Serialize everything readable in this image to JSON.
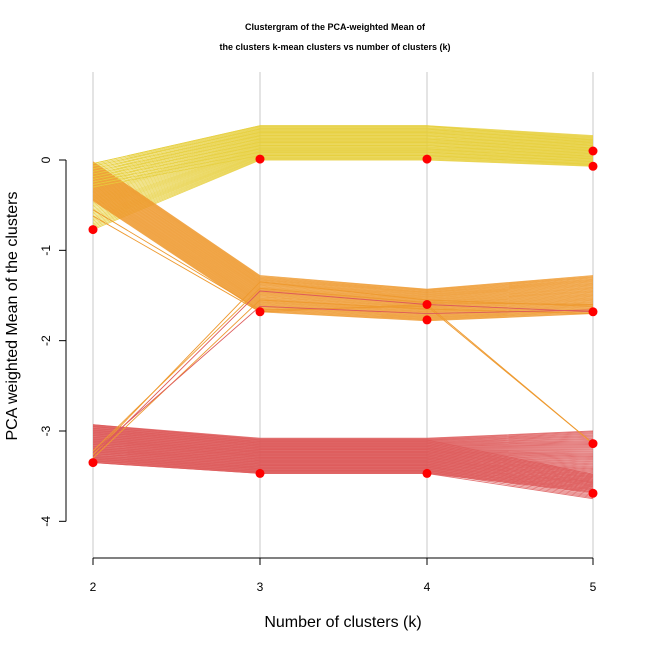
{
  "chart_data": {
    "type": "line",
    "title_line1": "Clustergram of the PCA-weighted Mean of",
    "title_line2": "the clusters k-mean clusters vs number of clusters (k)",
    "xlabel": "Number of clusters (k)",
    "ylabel": "PCA weighted Mean of the clusters",
    "x_ticks": [
      2,
      3,
      4,
      5
    ],
    "y_ticks": [
      0,
      -1,
      -2,
      -3,
      -4
    ],
    "xlim": [
      2,
      5
    ],
    "ylim": [
      -4.4,
      1.0
    ],
    "grid": "vertical",
    "colors": {
      "yellow": "#e6cf3c",
      "orange": "#ee9a30",
      "red": "#dd5a5a",
      "point": "#ff0000",
      "grid": "#c8c8c8"
    },
    "cluster_means": [
      {
        "k": 2,
        "values": [
          -0.77,
          -3.35
        ]
      },
      {
        "k": 3,
        "values": [
          0.01,
          -1.68,
          -3.47
        ]
      },
      {
        "k": 4,
        "values": [
          0.01,
          -1.6,
          -1.77,
          -3.47
        ]
      },
      {
        "k": 5,
        "values": [
          0.1,
          -0.07,
          -1.68,
          -3.14,
          -3.69
        ]
      }
    ],
    "bundles": [
      {
        "name": "",
        "color_key": "yellow",
        "count": 48,
        "path_top": [
          -0.04,
          0.38,
          0.38,
          0.27
        ],
        "path_bottom": [
          -0.77,
          0.0,
          0.0,
          -0.07
        ]
      },
      {
        "name": "",
        "color_key": "orange",
        "count": 48,
        "path_top": [
          -0.02,
          -1.28,
          -1.43,
          -1.28
        ],
        "path_bottom": [
          -0.45,
          -1.68,
          -1.78,
          -1.7
        ]
      },
      {
        "name": "",
        "color_key": "red",
        "count": 60,
        "path_top": [
          -2.93,
          -3.08,
          -3.08,
          -3.0
        ],
        "path_bottom": [
          -3.35,
          -3.47,
          -3.47,
          -3.68
        ]
      },
      {
        "name": "",
        "color_key": "red",
        "count": 22,
        "path_top": [
          -2.93,
          -3.1,
          -3.1,
          -3.48
        ],
        "path_bottom": [
          -3.35,
          -3.47,
          -3.47,
          -3.75
        ]
      },
      {
        "name": "",
        "color_key": "yellow",
        "count": 10,
        "path_top": [
          -0.04,
          0.38,
          0.38,
          0.22
        ],
        "path_bottom": [
          -0.3,
          0.05,
          0.05,
          -0.05
        ]
      }
    ],
    "strays": [
      {
        "color_key": "orange",
        "y": [
          -0.62,
          -1.68,
          -1.6,
          -3.14
        ]
      },
      {
        "color_key": "orange",
        "y": [
          -0.55,
          -1.66,
          -1.62,
          -3.14
        ]
      },
      {
        "color_key": "orange",
        "y": [
          -3.26,
          -1.35,
          -1.55,
          -1.62
        ]
      },
      {
        "color_key": "red",
        "y": [
          -3.28,
          -1.45,
          -1.6,
          -1.68
        ]
      },
      {
        "color_key": "orange",
        "y": [
          -3.3,
          -1.55,
          -1.65,
          -1.7
        ]
      },
      {
        "color_key": "red",
        "y": [
          -3.24,
          -1.62,
          -1.7,
          -1.66
        ]
      },
      {
        "color_key": "orange",
        "y": [
          -3.22,
          -1.42,
          -1.58,
          -1.6
        ]
      }
    ]
  }
}
